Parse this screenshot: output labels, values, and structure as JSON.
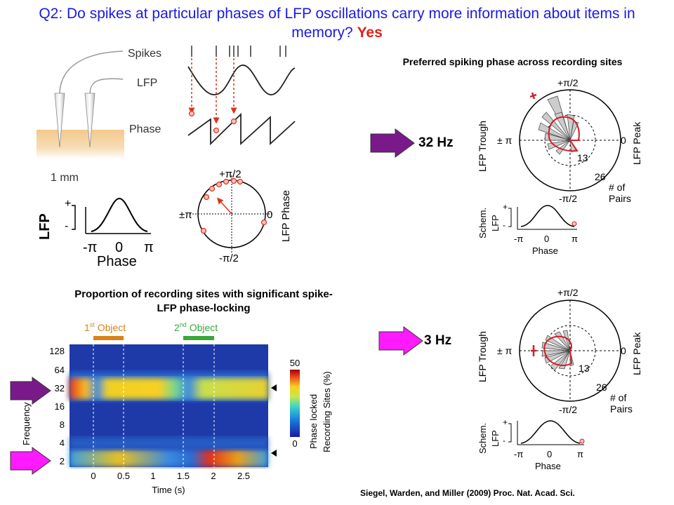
{
  "title": {
    "question": "Q2: Do spikes at particular phases of LFP oscillations carry more information about items in memory?",
    "answer": "Yes"
  },
  "schematic": {
    "spikes_label": "Spikes",
    "lfp_label": "LFP",
    "phase_label": "Phase",
    "scale_label": "1 mm",
    "spike_ticks": "|     |  |||  |        | |",
    "lfp_axis": {
      "ylabel": "LFP",
      "plus": "+",
      "minus": "-",
      "xlabel": "Phase",
      "ticks": [
        "-π",
        "0",
        "π"
      ]
    },
    "polar_labels": {
      "top": "+π/2",
      "bottom": "-π/2",
      "left": "±π",
      "right": "0",
      "side": "LFP Phase"
    }
  },
  "preferred_phase": {
    "heading": "Preferred spiking phase across recording sites",
    "panels": [
      {
        "frequency": "32 Hz",
        "arrow_color": "#7a1a8a"
      },
      {
        "frequency": "3 Hz",
        "arrow_color": "#ff1aff"
      }
    ],
    "polar_labels": {
      "top": "+π/2",
      "bottom": "-π/2",
      "left": "± π",
      "right": "0",
      "trough": "LFP Trough",
      "peak": "LFP Peak",
      "r13": "13",
      "r26": "26",
      "pairs1": "# of",
      "pairs2": "Pairs"
    },
    "mini": {
      "ylabel1": "Schem.",
      "ylabel2": "LFP",
      "plus": "+",
      "minus": "-",
      "xlabel": "Phase",
      "ticks": [
        "-π",
        "0",
        "π"
      ]
    }
  },
  "proportion": {
    "heading_line1": "Proportion of recording sites with significant spike-",
    "heading_line2": "LFP phase-locking",
    "object1": {
      "base": "1",
      "sup": "st",
      "rest": " Object",
      "color": "#d9821a"
    },
    "object2": {
      "base": "2",
      "sup": "nd",
      "rest": " Object",
      "color": "#3aa83a"
    },
    "ylabel": "Frequency (Hz)",
    "xlabel": "Time (s)",
    "yticks": [
      "128",
      "64",
      "32",
      "16",
      "8",
      "4",
      "2"
    ],
    "xticks": [
      "0",
      "0.5",
      "1",
      "1.5",
      "2",
      "2.5"
    ],
    "colorbar": {
      "max": "50",
      "min": "0",
      "label1": "Phase locked",
      "label2": "Recording Sites (%)"
    }
  },
  "citation": "Siegel, Warden, and Miller (2009) Proc. Nat. Acad. Sci."
}
